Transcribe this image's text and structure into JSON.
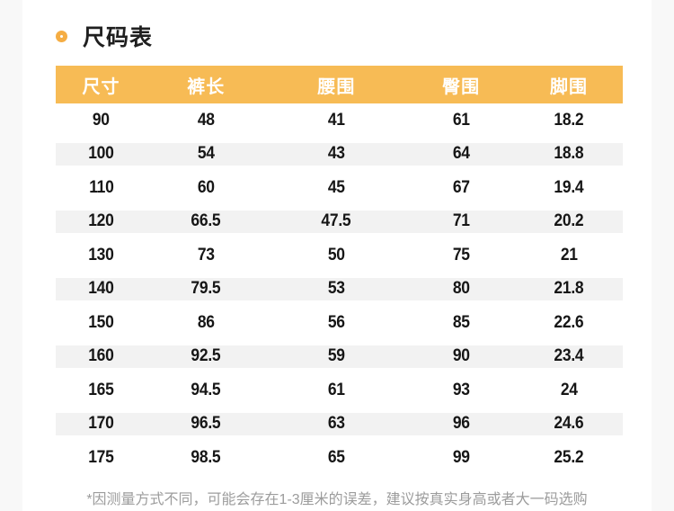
{
  "colors": {
    "accent_ring": "#f5ad43",
    "header_bg": "#f7bb55",
    "header_text": "#ffffff",
    "row_stripe": "#f2f2f2",
    "page_gutter": "#f8f8f8",
    "body_text": "#161616",
    "footnote_text": "#9c9c9c"
  },
  "chart_data": {
    "type": "table",
    "title": "尺码表",
    "columns": [
      "尺寸",
      "裤长",
      "腰围",
      "臀围",
      "脚围"
    ],
    "rows": [
      [
        90,
        48,
        41,
        61,
        18.2
      ],
      [
        100,
        54,
        43,
        64,
        18.8
      ],
      [
        110,
        60,
        45,
        67,
        19.4
      ],
      [
        120,
        66.5,
        47.5,
        71,
        20.2
      ],
      [
        130,
        73,
        50,
        75,
        21
      ],
      [
        140,
        79.5,
        53,
        80,
        21.8
      ],
      [
        150,
        86,
        56,
        85,
        22.6
      ],
      [
        160,
        92.5,
        59,
        90,
        23.4
      ],
      [
        165,
        94.5,
        61,
        93,
        24
      ],
      [
        170,
        96.5,
        63,
        96,
        24.6
      ],
      [
        175,
        98.5,
        65,
        99,
        25.2
      ]
    ],
    "footnote": "*因测量方式不同，可能会存在1-3厘米的误差，建议按真实身高或者大一码选购",
    "layout": {
      "header_fill": "amber",
      "striped_rows": "alternating, shaded from second data row",
      "text_align": "center",
      "grid": false
    }
  }
}
